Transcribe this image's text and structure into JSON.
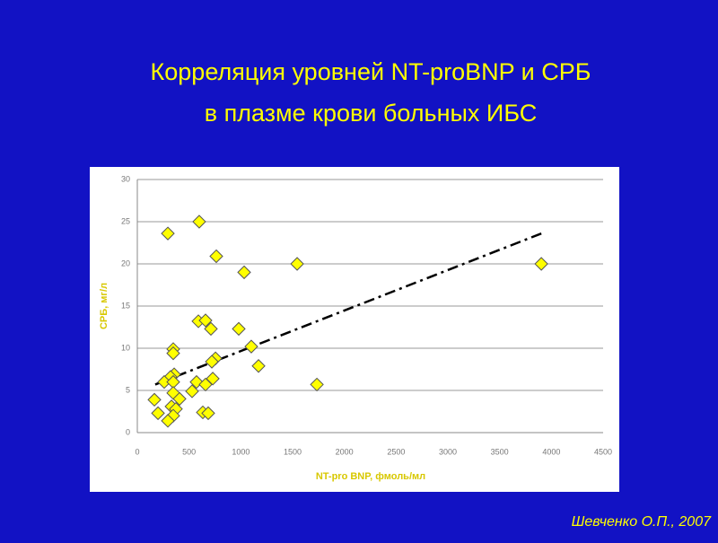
{
  "chart_data": {
    "type": "scatter",
    "title": "Корреляция уровней NT-proBNP и  СРБ",
    "subtitle": "в плазме крови  больных ИБС",
    "x_label": "NT-pro BNP, фмоль/мл",
    "y_label": "СРБ, мг/л",
    "footer": "Шевченко О.П., 2007",
    "xlim": [
      0,
      4500
    ],
    "ylim": [
      0,
      30
    ],
    "xticks": [
      0,
      500,
      1000,
      1500,
      2000,
      2500,
      3000,
      3500,
      4000,
      4500
    ],
    "yticks": [
      0,
      5,
      10,
      15,
      20,
      25,
      30
    ],
    "grid": true,
    "series": [
      {
        "color": "#ffff00",
        "x": [
          295,
          598,
          763,
          1032,
          1544,
          3903,
          590,
          659,
          711,
          980,
          1101,
          347,
          347,
          1171,
          755,
          720,
          356,
          321,
          260,
          347,
          729,
          572,
          659,
          1735,
          529,
          347,
          408,
          165,
          330,
          373,
          200,
          347,
          633,
          685,
          295
        ],
        "values": [
          23.6,
          25,
          20.9,
          19,
          20,
          20,
          13.2,
          13.3,
          12.3,
          12.3,
          10.2,
          9.9,
          9.4,
          7.9,
          8.8,
          8.4,
          6.9,
          6.6,
          6,
          6,
          6.4,
          6,
          5.7,
          5.7,
          4.9,
          4.7,
          4,
          3.9,
          3.1,
          2.8,
          2.3,
          2,
          2.4,
          2.3,
          1.4
        ]
      }
    ],
    "trendline": {
      "color": "#000000",
      "x": [
        173,
        3903
      ],
      "values": [
        5.7,
        23.6
      ]
    }
  }
}
